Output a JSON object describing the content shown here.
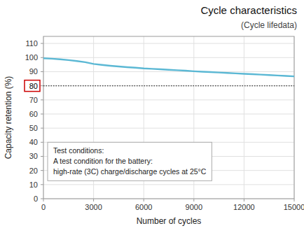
{
  "chart_data": {
    "type": "line",
    "title": "Cycle characteristics",
    "subtitle": "(Cycle lifedata)",
    "xlabel": "Number of cycles",
    "ylabel": "Capacity retention (%)",
    "x": [
      0,
      500,
      1000,
      1500,
      2000,
      2500,
      3000,
      3500,
      4000,
      4500,
      5000,
      5500,
      6000,
      6500,
      7000,
      7500,
      8000,
      8500,
      9000,
      9500,
      10000,
      10500,
      11000,
      11500,
      12000,
      12500,
      13000,
      13500,
      14000,
      14500,
      15000
    ],
    "series": [
      {
        "color": "#5bb8d4",
        "values": [
          99.5,
          99.2,
          98.8,
          98.2,
          97.5,
          96.7,
          95.5,
          94.8,
          94.2,
          93.7,
          93.2,
          92.8,
          92.3,
          92.0,
          91.7,
          91.3,
          91.0,
          90.7,
          90.3,
          90.0,
          89.7,
          89.4,
          89.1,
          88.8,
          88.5,
          88.2,
          87.9,
          87.6,
          87.3,
          87.0,
          86.7
        ]
      }
    ],
    "hline": 80,
    "annotations": [
      "Test conditions:",
      "A test condition for the battery:",
      "high-rate (3C) charge/discharge cycles at 25°C"
    ],
    "xlim": [
      0,
      15000
    ],
    "ylim": [
      0,
      115
    ],
    "xticks": [
      0,
      3000,
      6000,
      9000,
      12000,
      15000
    ],
    "yticks": [
      0,
      10,
      20,
      30,
      40,
      50,
      60,
      70,
      80,
      90,
      100,
      110
    ],
    "grid": true
  }
}
